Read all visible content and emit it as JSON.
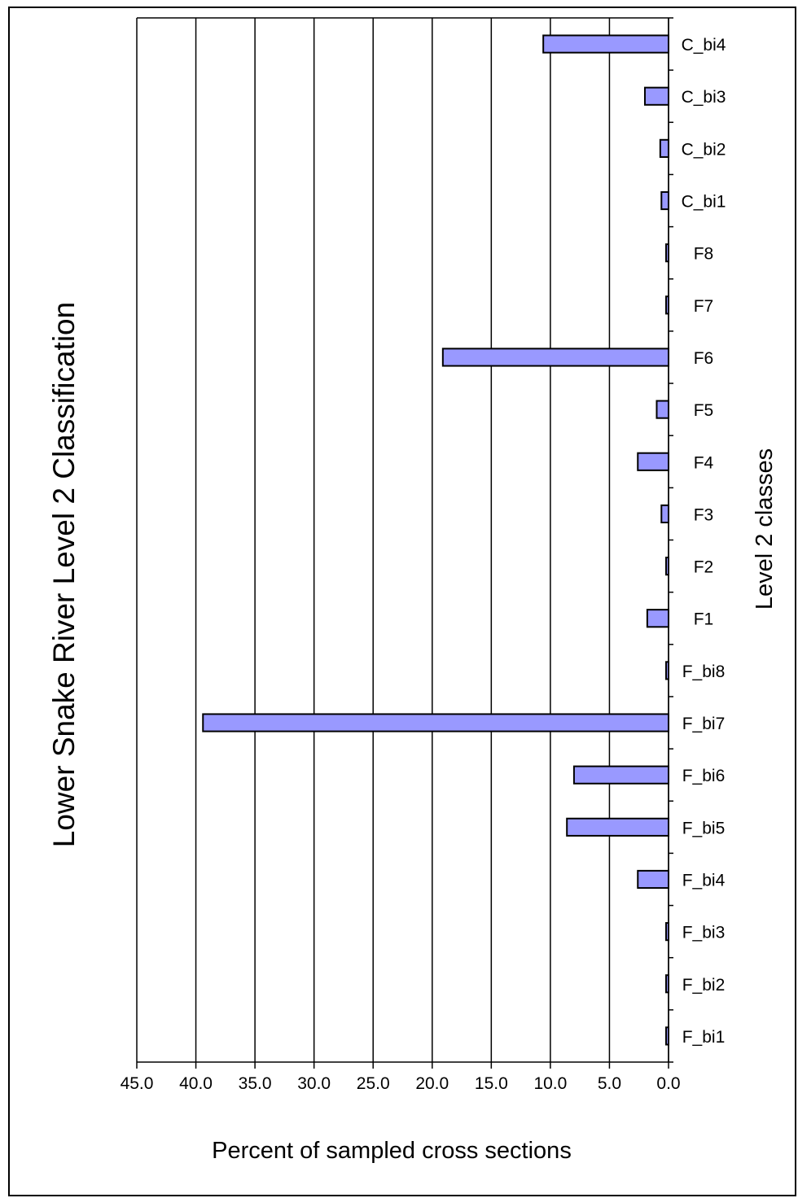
{
  "chart_data": {
    "type": "bar",
    "orientation": "horizontal",
    "x_axis_reversed": true,
    "title": "Lower Snake River Level 2 Classification",
    "xlabel": "Percent of sampled cross sections",
    "ylabel": "Level 2 classes",
    "xlim": [
      0,
      45
    ],
    "x_ticks": [
      "45.0",
      "40.0",
      "35.0",
      "30.0",
      "25.0",
      "20.0",
      "15.0",
      "10.0",
      "5.0",
      "0.0"
    ],
    "grid": "vertical",
    "bar_color": "#9999ff",
    "categories": [
      "C_bi4",
      "C_bi3",
      "C_bi2",
      "C_bi1",
      "F8",
      "F7",
      "F6",
      "F5",
      "F4",
      "F3",
      "F2",
      "F1",
      "F_bi8",
      "F_bi7",
      "F_bi6",
      "F_bi5",
      "F_bi4",
      "F_bi3",
      "F_bi2",
      "F_bi1"
    ],
    "values": [
      10.6,
      2.0,
      0.7,
      0.6,
      0.1,
      0.1,
      19.1,
      1.0,
      2.6,
      0.6,
      0.1,
      1.8,
      0.1,
      39.4,
      8.0,
      8.6,
      2.6,
      0.1,
      0.1,
      0.1
    ]
  }
}
